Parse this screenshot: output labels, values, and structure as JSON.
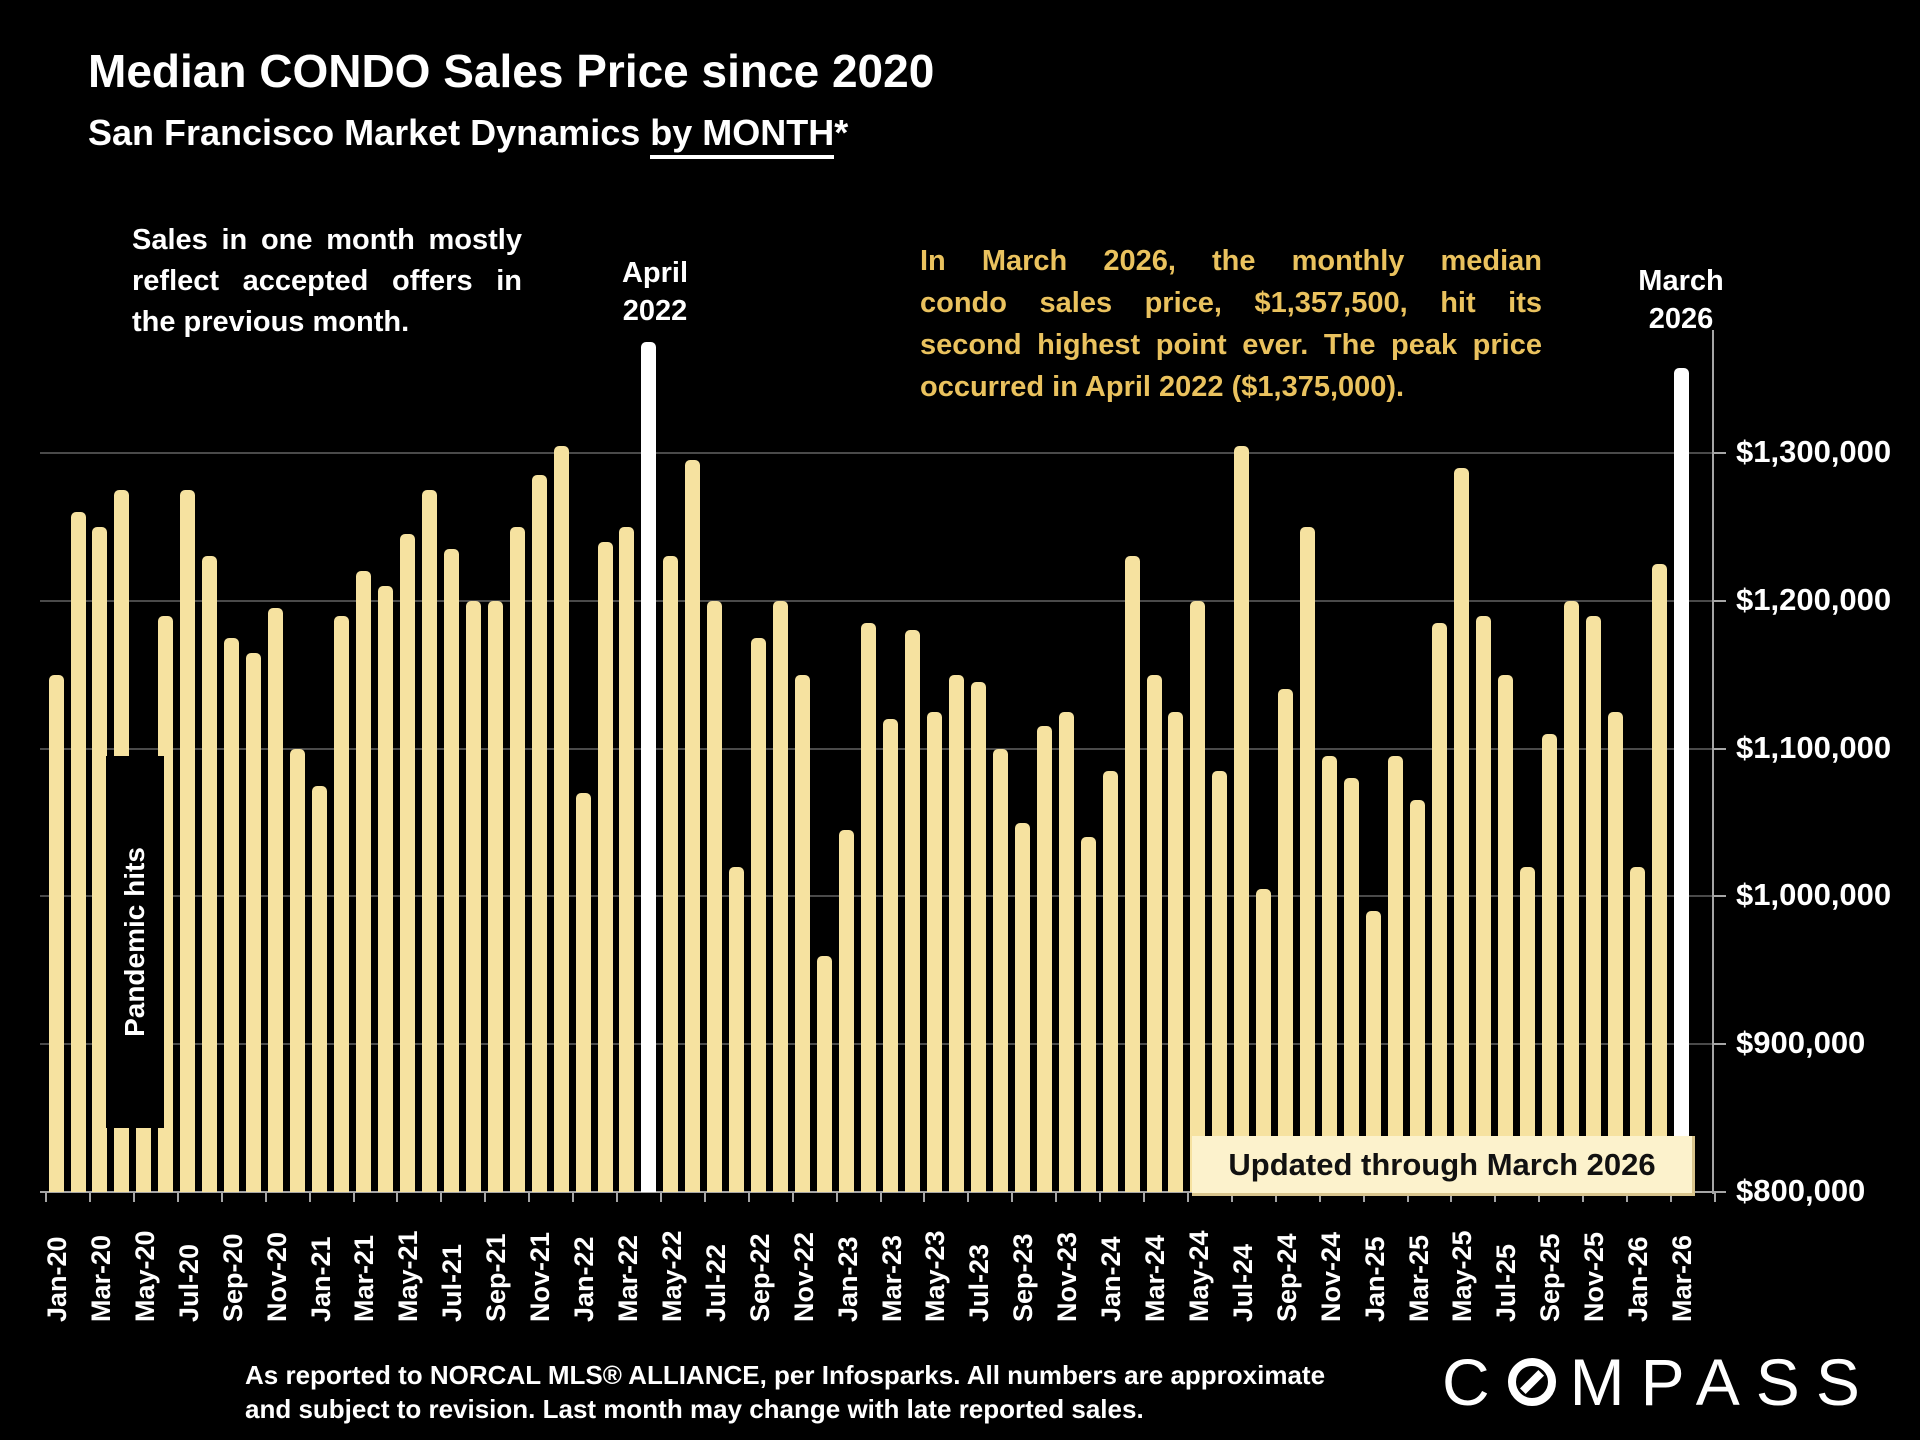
{
  "header": {
    "title": "Median CONDO Sales Price since 2020",
    "subtitle_plain": "San Francisco Market Dynamics ",
    "subtitle_underlined": "by MONTH",
    "subtitle_suffix": "*"
  },
  "annotations": {
    "left_note_lines": [
      "Sales in one month mostly",
      "reflect accepted offers in",
      "the previous month."
    ],
    "april_label_line1": "April",
    "april_label_line2": "2022",
    "march_label_line1": "March",
    "march_label_line2": "2026",
    "highlight_note_lines": [
      "In March 2026, the monthly median",
      "condo sales price, $1,357,500, hit its",
      "second highest point ever. The peak price",
      "occurred in April 2022 ($1,375,000)."
    ],
    "pandemic_label": "Pandemic hits",
    "updated_band": "Updated through March 2026"
  },
  "footer": {
    "line1": "As reported to NORCAL MLS® ALLIANCE, per Infosparks. All numbers are approximate",
    "line2": "and subject to revision. Last month may change with late reported sales.",
    "logo_first": "C",
    "logo_rest": "MPASS"
  },
  "colors": {
    "background": "#000000",
    "bar": "#F6E2A0",
    "bar_highlight": "#FFFFFF",
    "accent_text": "#EAC25E",
    "band_background": "#FCF2CC",
    "band_text": "#111111",
    "gridline": "#4A4A4A",
    "axis": "#A6A6A6",
    "text": "#FFFFFF"
  },
  "chart_data": {
    "type": "bar",
    "title": "Median CONDO Sales Price since 2020",
    "subtitle": "San Francisco Market Dynamics by MONTH*",
    "unit": "USD",
    "grid": true,
    "ylim": [
      800000,
      1400000
    ],
    "y_ticks": [
      {
        "label": "$1,300,000",
        "value": 1300000
      },
      {
        "label": "$1,200,000",
        "value": 1200000
      },
      {
        "label": "$1,100,000",
        "value": 1100000
      },
      {
        "label": "$1,000,000",
        "value": 1000000
      },
      {
        "label": "$900,000",
        "value": 900000
      },
      {
        "label": "$800,000",
        "value": 800000
      }
    ],
    "highlighted_months": [
      "Apr-22",
      "Mar-26"
    ],
    "highlight_values": {
      "Apr-22": 1375000,
      "Mar-26": 1357500
    },
    "categories": [
      "Jan-20",
      "Feb-20",
      "Mar-20",
      "Apr-20",
      "May-20",
      "Jun-20",
      "Jul-20",
      "Aug-20",
      "Sep-20",
      "Oct-20",
      "Nov-20",
      "Dec-20",
      "Jan-21",
      "Feb-21",
      "Mar-21",
      "Apr-21",
      "May-21",
      "Jun-21",
      "Jul-21",
      "Aug-21",
      "Sep-21",
      "Oct-21",
      "Nov-21",
      "Dec-21",
      "Jan-22",
      "Feb-22",
      "Mar-22",
      "Apr-22",
      "May-22",
      "Jun-22",
      "Jul-22",
      "Aug-22",
      "Sep-22",
      "Oct-22",
      "Nov-22",
      "Dec-22",
      "Jan-23",
      "Feb-23",
      "Mar-23",
      "Apr-23",
      "May-23",
      "Jun-23",
      "Jul-23",
      "Aug-23",
      "Sep-23",
      "Oct-23",
      "Nov-23",
      "Dec-23",
      "Jan-24",
      "Feb-24",
      "Mar-24",
      "Apr-24",
      "May-24",
      "Jun-24",
      "Jul-24",
      "Aug-24",
      "Sep-24",
      "Oct-24",
      "Nov-24",
      "Dec-24",
      "Jan-25",
      "Feb-25",
      "Mar-25",
      "Apr-25",
      "May-25",
      "Jun-25",
      "Jul-25",
      "Aug-25",
      "Sep-25",
      "Oct-25",
      "Nov-25",
      "Dec-25",
      "Jan-26",
      "Feb-26",
      "Mar-26"
    ],
    "values": [
      1150000,
      1260000,
      1250000,
      1275000,
      1070000,
      1190000,
      1275000,
      1230000,
      1175000,
      1165000,
      1195000,
      1100000,
      1075000,
      1190000,
      1220000,
      1210000,
      1245000,
      1275000,
      1235000,
      1200000,
      1200000,
      1250000,
      1285000,
      1305000,
      1070000,
      1240000,
      1250000,
      1375000,
      1230000,
      1295000,
      1200000,
      1020000,
      1175000,
      1200000,
      1150000,
      960000,
      1045000,
      1185000,
      1120000,
      1180000,
      1125000,
      1150000,
      1145000,
      1100000,
      1050000,
      1115000,
      1125000,
      1040000,
      1085000,
      1230000,
      1150000,
      1125000,
      1200000,
      1085000,
      1305000,
      1005000,
      1140000,
      1250000,
      1095000,
      1080000,
      990000,
      1095000,
      1065000,
      1185000,
      1290000,
      1190000,
      1150000,
      1020000,
      1110000,
      1200000,
      1190000,
      1125000,
      1020000,
      1225000,
      1357500
    ],
    "x_tick_label_every": 2,
    "legend": "none"
  }
}
